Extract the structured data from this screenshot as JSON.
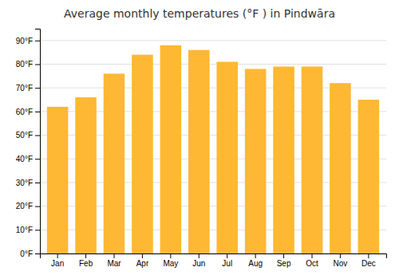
{
  "chart_data": {
    "type": "bar",
    "title": "Average monthly temperatures (°F ) in Pindwāra",
    "categories": [
      "Jan",
      "Feb",
      "Mar",
      "Apr",
      "May",
      "Jun",
      "Jul",
      "Aug",
      "Sep",
      "Oct",
      "Nov",
      "Dec"
    ],
    "values": [
      62,
      66,
      76,
      84,
      88,
      86,
      81,
      78,
      79,
      79,
      72,
      65
    ],
    "color": "#FFB833",
    "ylim": [
      0,
      95
    ],
    "yticks": [
      {
        "value": 0,
        "label": "0°F"
      },
      {
        "value": 10,
        "label": "10°F"
      },
      {
        "value": 20,
        "label": "20°F"
      },
      {
        "value": 30,
        "label": "30°F"
      },
      {
        "value": 40,
        "label": "40°F"
      },
      {
        "value": 50,
        "label": "50°F"
      },
      {
        "value": 60,
        "label": "60°F"
      },
      {
        "value": 70,
        "label": "70°F"
      },
      {
        "value": 80,
        "label": "80°F"
      },
      {
        "value": 90,
        "label": "90°F"
      }
    ],
    "grid": true
  }
}
